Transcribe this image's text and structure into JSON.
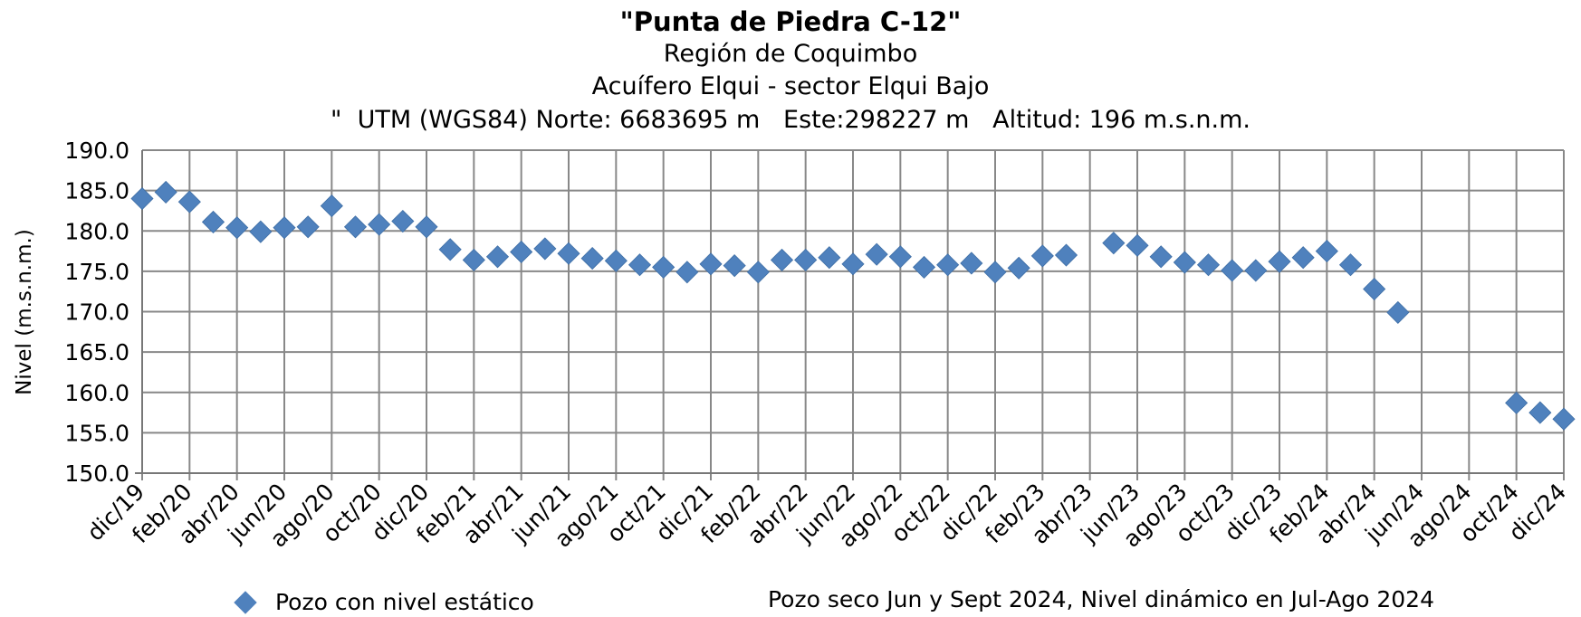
{
  "chart_data": {
    "type": "scatter",
    "title": "\"Punta de Piedra C-12\"",
    "subtitle_lines": [
      "Región de Coquimbo",
      "Acuífero Elqui - sector Elqui Bajo",
      "\"  UTM (WGS84) Norte: 6683695 m   Este:298227 m   Altitud: 196 m.s.n.m."
    ],
    "ylabel": "Nivel (m.s.n.m.)",
    "ylim": [
      150,
      190
    ],
    "yticks": [
      "190.0",
      "185.0",
      "180.0",
      "175.0",
      "170.0",
      "165.0",
      "160.0",
      "155.0",
      "150.0"
    ],
    "x_months_range": [
      "dic/19",
      "dic/24"
    ],
    "xticks": [
      "dic/19",
      "feb/20",
      "abr/20",
      "jun/20",
      "ago/20",
      "oct/20",
      "dic/20",
      "feb/21",
      "abr/21",
      "jun/21",
      "ago/21",
      "oct/21",
      "dic/21",
      "feb/22",
      "abr/22",
      "jun/22",
      "ago/22",
      "oct/22",
      "dic/22",
      "feb/23",
      "abr/23",
      "jun/23",
      "ago/23",
      "oct/23",
      "dic/23",
      "feb/24",
      "abr/24",
      "jun/24",
      "ago/24",
      "oct/24",
      "dic/24"
    ],
    "grid": true,
    "legend_position": "bottom-left",
    "series": [
      {
        "name": "Pozo con nivel estático",
        "color": "#4F81BD",
        "marker": "diamond",
        "points": [
          [
            "dic/19",
            184.0
          ],
          [
            "ene/20",
            184.8
          ],
          [
            "feb/20",
            183.6
          ],
          [
            "mar/20",
            181.1
          ],
          [
            "abr/20",
            180.4
          ],
          [
            "may/20",
            179.9
          ],
          [
            "jun/20",
            180.4
          ],
          [
            "jul/20",
            180.5
          ],
          [
            "ago/20",
            183.1
          ],
          [
            "sep/20",
            180.5
          ],
          [
            "oct/20",
            180.8
          ],
          [
            "nov/20",
            181.2
          ],
          [
            "dic/20",
            180.5
          ],
          [
            "ene/21",
            177.7
          ],
          [
            "feb/21",
            176.4
          ],
          [
            "mar/21",
            176.8
          ],
          [
            "abr/21",
            177.4
          ],
          [
            "may/21",
            177.8
          ],
          [
            "jun/21",
            177.2
          ],
          [
            "jul/21",
            176.6
          ],
          [
            "ago/21",
            176.3
          ],
          [
            "sep/21",
            175.8
          ],
          [
            "oct/21",
            175.5
          ],
          [
            "nov/21",
            174.9
          ],
          [
            "dic/21",
            175.9
          ],
          [
            "ene/22",
            175.7
          ],
          [
            "feb/22",
            174.9
          ],
          [
            "mar/22",
            176.4
          ],
          [
            "abr/22",
            176.4
          ],
          [
            "may/22",
            176.7
          ],
          [
            "jun/22",
            175.9
          ],
          [
            "jul/22",
            177.1
          ],
          [
            "ago/22",
            176.8
          ],
          [
            "sep/22",
            175.5
          ],
          [
            "oct/22",
            175.8
          ],
          [
            "nov/22",
            176.0
          ],
          [
            "dic/22",
            174.9
          ],
          [
            "ene/23",
            175.4
          ],
          [
            "feb/23",
            176.9
          ],
          [
            "mar/23",
            177.0
          ],
          [
            "may/23",
            178.5
          ],
          [
            "jun/23",
            178.2
          ],
          [
            "jul/23",
            176.8
          ],
          [
            "ago/23",
            176.1
          ],
          [
            "sep/23",
            175.8
          ],
          [
            "oct/23",
            175.1
          ],
          [
            "nov/23",
            175.1
          ],
          [
            "dic/23",
            176.2
          ],
          [
            "ene/24",
            176.7
          ],
          [
            "feb/24",
            177.5
          ],
          [
            "mar/24",
            175.8
          ],
          [
            "abr/24",
            172.8
          ],
          [
            "may/24",
            169.9
          ],
          [
            "oct/24",
            158.7
          ],
          [
            "nov/24",
            157.5
          ],
          [
            "dic/24",
            156.7
          ]
        ]
      }
    ],
    "annotation": "Pozo seco Jun y Sept 2024, Nivel dinámico en Jul-Ago 2024"
  }
}
